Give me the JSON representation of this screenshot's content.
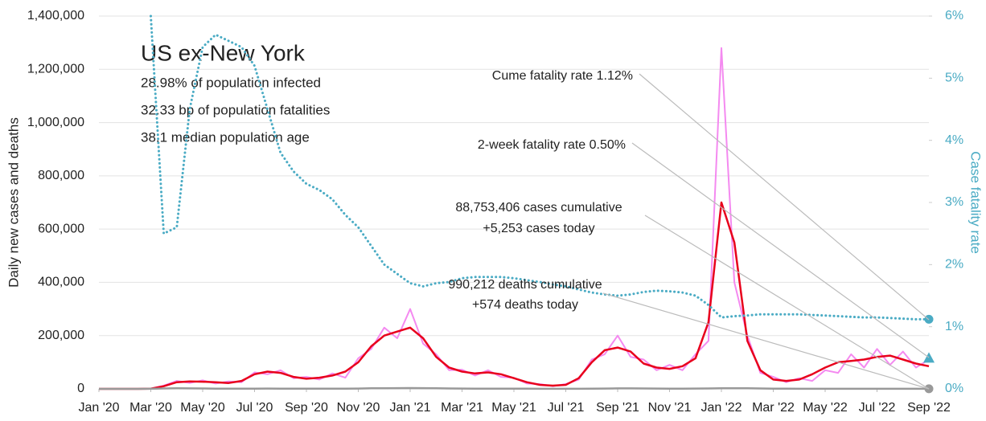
{
  "chart_data": {
    "type": "line",
    "title": "US ex-New York",
    "subtitle": [
      "28.98% of population infected",
      "32.33 bp of population fatalities",
      "38.1 median population age"
    ],
    "ylabel": "Daily new cases and deaths",
    "y2label": "Case fatality rate",
    "annotations": [
      "Cume fatality rate 1.12%",
      "2-week fatality rate 0.50%",
      "88,753,406 cases cumulative",
      "+5,253 cases today",
      "990,212 deaths cumulative",
      "+574 deaths today"
    ],
    "grid": true,
    "xlim": [
      0,
      32
    ],
    "xticks": [
      {
        "value": 0,
        "label": "Jan '20"
      },
      {
        "value": 2,
        "label": "Mar '20"
      },
      {
        "value": 4,
        "label": "May '20"
      },
      {
        "value": 6,
        "label": "Jul '20"
      },
      {
        "value": 8,
        "label": "Sep '20"
      },
      {
        "value": 10,
        "label": "Nov '20"
      },
      {
        "value": 12,
        "label": "Jan '21"
      },
      {
        "value": 14,
        "label": "Mar '21"
      },
      {
        "value": 16,
        "label": "May '21"
      },
      {
        "value": 18,
        "label": "Jul '21"
      },
      {
        "value": 20,
        "label": "Sep '21"
      },
      {
        "value": 22,
        "label": "Nov '21"
      },
      {
        "value": 24,
        "label": "Jan '22"
      },
      {
        "value": 26,
        "label": "Mar '22"
      },
      {
        "value": 28,
        "label": "May '22"
      },
      {
        "value": 30,
        "label": "Jul '22"
      },
      {
        "value": 32,
        "label": "Sep '22"
      }
    ],
    "ylim": [
      0,
      1400000
    ],
    "yticks": [
      0,
      {
        "value": 200000,
        "label": "200,000"
      },
      {
        "value": 400000,
        "label": "400,000"
      },
      {
        "value": 600000,
        "label": "600,000"
      },
      {
        "value": 800000,
        "label": "800,000"
      },
      {
        "value": 1000000,
        "label": "1,000,000"
      },
      {
        "value": 1200000,
        "label": "1,200,000"
      },
      {
        "value": 1400000,
        "label": "1,400,000"
      }
    ],
    "y2lim": [
      0,
      6
    ],
    "y2ticks": [
      {
        "value": 0,
        "label": "0%"
      },
      {
        "value": 1,
        "label": "1%"
      },
      {
        "value": 2,
        "label": "2%"
      },
      {
        "value": 3,
        "label": "3%"
      },
      {
        "value": 4,
        "label": "4%"
      },
      {
        "value": 5,
        "label": "5%"
      },
      {
        "value": 6,
        "label": "6%"
      }
    ],
    "x": [
      0,
      0.5,
      1,
      1.5,
      2,
      2.5,
      3,
      3.5,
      4,
      4.5,
      5,
      5.5,
      6,
      6.5,
      7,
      7.5,
      8,
      8.5,
      9,
      9.5,
      10,
      10.5,
      11,
      11.5,
      12,
      12.5,
      13,
      13.5,
      14,
      14.5,
      15,
      15.5,
      16,
      16.5,
      17,
      17.5,
      18,
      18.5,
      19,
      19.5,
      20,
      20.5,
      21,
      21.5,
      22,
      22.5,
      23,
      23.5,
      24,
      24.5,
      25,
      25.5,
      26,
      26.5,
      27,
      27.5,
      28,
      28.5,
      29,
      29.5,
      30,
      30.5,
      31,
      31.5,
      32
    ],
    "series": [
      {
        "color": "#f48af0",
        "width": 2,
        "values": [
          0,
          0,
          0,
          0,
          1000,
          12000,
          30000,
          22000,
          32000,
          20000,
          28000,
          25000,
          62000,
          55000,
          70000,
          40000,
          45000,
          35000,
          58000,
          42000,
          115000,
          150000,
          230000,
          190000,
          300000,
          170000,
          130000,
          70000,
          72000,
          50000,
          70000,
          45000,
          42000,
          20000,
          18000,
          10000,
          18000,
          35000,
          110000,
          130000,
          200000,
          120000,
          110000,
          70000,
          90000,
          70000,
          130000,
          180000,
          1280000,
          400000,
          200000,
          60000,
          45000,
          25000,
          40000,
          30000,
          70000,
          60000,
          130000,
          80000,
          150000,
          90000,
          140000,
          80000,
          110000
        ]
      },
      {
        "color": "#e8001c",
        "width": 2.5,
        "values": [
          0,
          0,
          0,
          0,
          1000,
          10000,
          25000,
          28000,
          27000,
          25000,
          22000,
          30000,
          55000,
          65000,
          60000,
          45000,
          38000,
          42000,
          50000,
          65000,
          100000,
          160000,
          200000,
          215000,
          230000,
          190000,
          120000,
          80000,
          65000,
          58000,
          62000,
          55000,
          40000,
          25000,
          15000,
          12000,
          15000,
          40000,
          100000,
          145000,
          155000,
          140000,
          95000,
          80000,
          75000,
          85000,
          115000,
          250000,
          700000,
          550000,
          180000,
          70000,
          35000,
          30000,
          35000,
          55000,
          80000,
          100000,
          105000,
          110000,
          120000,
          125000,
          110000,
          95000,
          85000
        ]
      },
      {
        "color": "#999999",
        "width": 2.5,
        "end_marker": "circle",
        "values": [
          0,
          0,
          0,
          0,
          200,
          1500,
          2000,
          1800,
          1500,
          1000,
          800,
          700,
          900,
          1100,
          1000,
          900,
          800,
          800,
          800,
          900,
          1300,
          2000,
          2500,
          2700,
          3000,
          2600,
          2000,
          1400,
          1100,
          900,
          800,
          700,
          600,
          500,
          400,
          300,
          300,
          400,
          800,
          1300,
          1800,
          1700,
          1400,
          1100,
          1000,
          1000,
          1200,
          1500,
          2200,
          2400,
          2000,
          1500,
          900,
          600,
          450,
          400,
          400,
          400,
          450,
          450,
          450,
          450,
          450,
          450,
          450
        ]
      },
      {
        "color": "#4aabc4",
        "width": 3,
        "dotted": true,
        "axis": "y2",
        "end_marker": "circle",
        "values": [
          null,
          null,
          null,
          null,
          6.0,
          2.5,
          2.6,
          4.5,
          5.5,
          5.7,
          5.6,
          5.5,
          5.2,
          4.5,
          3.8,
          3.5,
          3.3,
          3.2,
          3.05,
          2.8,
          2.6,
          2.3,
          2.0,
          1.85,
          1.7,
          1.65,
          1.7,
          1.72,
          1.78,
          1.8,
          1.8,
          1.8,
          1.78,
          1.75,
          1.72,
          1.68,
          1.65,
          1.6,
          1.55,
          1.52,
          1.5,
          1.52,
          1.56,
          1.58,
          1.57,
          1.55,
          1.5,
          1.35,
          1.15,
          1.17,
          1.18,
          1.2,
          1.2,
          1.2,
          1.2,
          1.19,
          1.18,
          1.17,
          1.16,
          1.15,
          1.15,
          1.14,
          1.13,
          1.12,
          1.12
        ]
      }
    ],
    "markers": [
      {
        "x": 32,
        "y": 0.5,
        "axis": "y2",
        "shape": "triangle",
        "color": "#4aabc4"
      }
    ]
  }
}
